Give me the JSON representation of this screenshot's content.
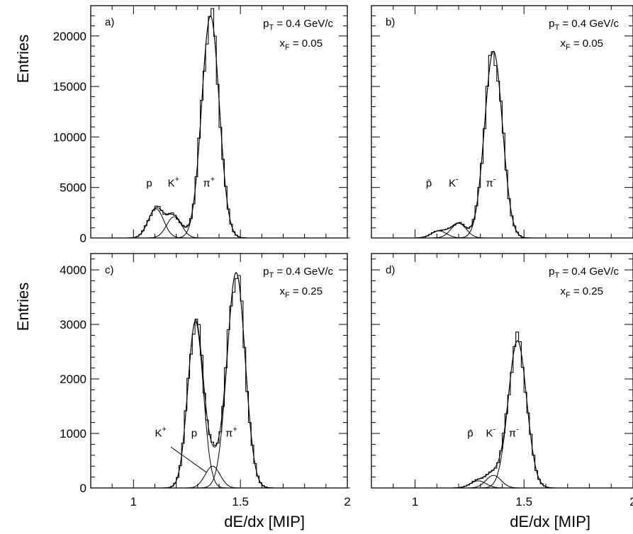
{
  "chart_data": [
    {
      "id": "a",
      "type": "line",
      "panel_label": "a)",
      "info_line1": "pT = 0.4 GeV/c",
      "info_line2": "xF = 0.05",
      "ylabel": "Entries",
      "xlabel": "",
      "xlim": [
        0.8,
        2.0
      ],
      "ylim": [
        0,
        23000
      ],
      "yticks": [
        0,
        5000,
        10000,
        15000,
        20000
      ],
      "xticks": [
        1,
        1.5,
        2
      ],
      "xtick_labels": [
        "",
        "",
        ""
      ],
      "components": [
        {
          "name": "p",
          "mean": 1.105,
          "sigma": 0.036,
          "amp": 2900
        },
        {
          "name": "K+",
          "mean": 1.19,
          "sigma": 0.035,
          "amp": 2100
        },
        {
          "name": "π+",
          "mean": 1.36,
          "sigma": 0.041,
          "amp": 22000
        }
      ],
      "peak_labels": [
        {
          "text": "p",
          "sup": "",
          "x": 1.06,
          "y": 5100
        },
        {
          "text": "K",
          "sup": "+",
          "x": 1.16,
          "y": 5100
        },
        {
          "text": "π",
          "sup": "+",
          "x": 1.325,
          "y": 5100
        }
      ]
    },
    {
      "id": "b",
      "type": "line",
      "panel_label": "b)",
      "info_line1": "pT = 0.4 GeV/c",
      "info_line2": "xF = 0.05",
      "ylabel": "",
      "xlabel": "",
      "xlim": [
        0.8,
        2.0
      ],
      "ylim": [
        0,
        23000
      ],
      "yticks": [
        0,
        5000,
        10000,
        15000,
        20000
      ],
      "xticks": [
        1,
        1.5,
        2
      ],
      "xtick_labels": [
        "",
        "",
        ""
      ],
      "components": [
        {
          "name": "p̄",
          "mean": 1.11,
          "sigma": 0.035,
          "amp": 700
        },
        {
          "name": "K-",
          "mean": 1.2,
          "sigma": 0.035,
          "amp": 1450
        },
        {
          "name": "π-",
          "mean": 1.36,
          "sigma": 0.041,
          "amp": 18500
        }
      ],
      "peak_labels": [
        {
          "text": "p̄",
          "sup": "",
          "x": 1.05,
          "y": 5100
        },
        {
          "text": "K",
          "sup": "-",
          "x": 1.155,
          "y": 5100
        },
        {
          "text": "π",
          "sup": "-",
          "x": 1.325,
          "y": 5100
        }
      ]
    },
    {
      "id": "c",
      "type": "line",
      "panel_label": "c)",
      "info_line1": "pT = 0.4 GeV/c",
      "info_line2": "xF = 0.25",
      "ylabel": "Entries",
      "xlabel": "dE/dx [MIP]",
      "xlim": [
        0.8,
        2.0
      ],
      "ylim": [
        0,
        4300
      ],
      "yticks": [
        0,
        1000,
        2000,
        3000,
        4000
      ],
      "xticks": [
        1,
        1.5,
        2
      ],
      "xtick_labels": [
        "1",
        "1.5",
        "2"
      ],
      "components": [
        {
          "name": "p",
          "mean": 1.29,
          "sigma": 0.036,
          "amp": 3050
        },
        {
          "name": "K+",
          "mean": 1.37,
          "sigma": 0.035,
          "amp": 400
        },
        {
          "name": "π+",
          "mean": 1.48,
          "sigma": 0.042,
          "amp": 3950
        }
      ],
      "peak_labels": [
        {
          "text": "K",
          "sup": "+",
          "x": 1.1,
          "y": 940
        },
        {
          "text": "p",
          "sup": "",
          "x": 1.27,
          "y": 940
        },
        {
          "text": "π",
          "sup": "+",
          "x": 1.43,
          "y": 940
        }
      ],
      "pointer": {
        "from_x": 1.175,
        "from_y": 750,
        "to_x": 1.34,
        "to_y": 290
      }
    },
    {
      "id": "d",
      "type": "line",
      "panel_label": "d)",
      "info_line1": "pT = 0.4 GeV/c",
      "info_line2": "xF = 0.25",
      "ylabel": "",
      "xlabel": "dE/dx [MIP]",
      "xlim": [
        0.8,
        2.0
      ],
      "ylim": [
        0,
        4300
      ],
      "yticks": [
        0,
        1000,
        2000,
        3000,
        4000
      ],
      "xticks": [
        1,
        1.5,
        2
      ],
      "xtick_labels": [
        "1",
        "1.5",
        "2"
      ],
      "components": [
        {
          "name": "p̄",
          "mean": 1.29,
          "sigma": 0.036,
          "amp": 130
        },
        {
          "name": "K-",
          "mean": 1.36,
          "sigma": 0.035,
          "amp": 230
        },
        {
          "name": "π-",
          "mean": 1.47,
          "sigma": 0.042,
          "amp": 2700
        }
      ],
      "peak_labels": [
        {
          "text": "p̄",
          "sup": "",
          "x": 1.24,
          "y": 940
        },
        {
          "text": "K",
          "sup": "-",
          "x": 1.325,
          "y": 940
        },
        {
          "text": "π",
          "sup": "-",
          "x": 1.43,
          "y": 940
        }
      ]
    }
  ]
}
